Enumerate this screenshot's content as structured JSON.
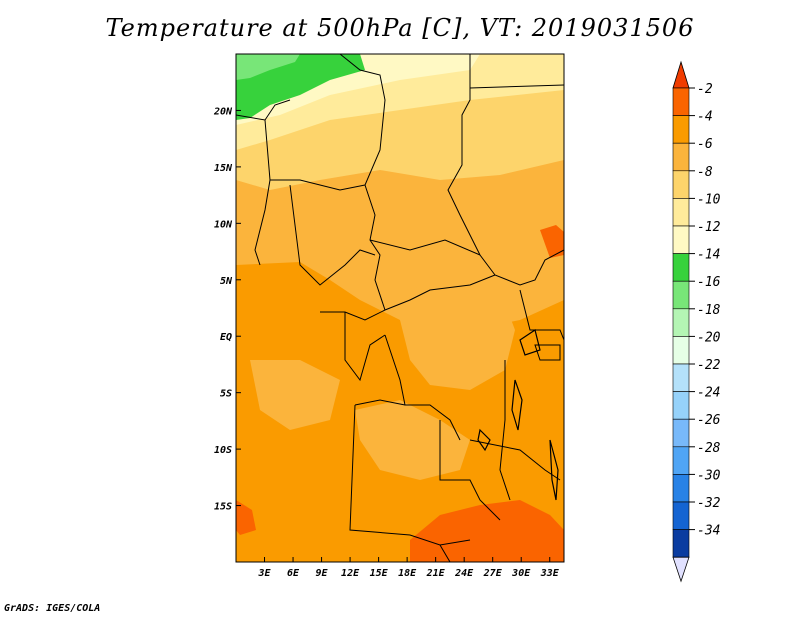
{
  "title": "Temperature at 500hPa [C], VT: 2019031506",
  "footer": "GrADS: IGES/COLA",
  "map": {
    "lat_labels": [
      {
        "lat": 20,
        "label": "20N"
      },
      {
        "lat": 15,
        "label": "15N"
      },
      {
        "lat": 10,
        "label": "10N"
      },
      {
        "lat": 5,
        "label": "5N"
      },
      {
        "lat": 0,
        "label": "EQ"
      },
      {
        "lat": -5,
        "label": "5S"
      },
      {
        "lat": -10,
        "label": "10S"
      },
      {
        "lat": -15,
        "label": "15S"
      }
    ],
    "lon_labels": [
      {
        "lon": 3,
        "label": "3E"
      },
      {
        "lon": 6,
        "label": "6E"
      },
      {
        "lon": 9,
        "label": "9E"
      },
      {
        "lon": 12,
        "label": "12E"
      },
      {
        "lon": 15,
        "label": "15E"
      },
      {
        "lon": 18,
        "label": "18E"
      },
      {
        "lon": 21,
        "label": "21E"
      },
      {
        "lon": 24,
        "label": "24E"
      },
      {
        "lon": 27,
        "label": "27E"
      },
      {
        "lon": 30,
        "label": "30E"
      },
      {
        "lon": 33,
        "label": "33E"
      }
    ],
    "lon_range": [
      0,
      34.5
    ],
    "lat_range": [
      -20,
      25
    ]
  },
  "colorbar": {
    "levels": [
      {
        "label": "-2",
        "color": "#fa6400"
      },
      {
        "label": "-4",
        "color": "#fa9b00"
      },
      {
        "label": "-6",
        "color": "#fbb43c"
      },
      {
        "label": "-8",
        "color": "#fdd46b"
      },
      {
        "label": "-10",
        "color": "#ffeb9b"
      },
      {
        "label": "-12",
        "color": "#fff9c4"
      },
      {
        "label": "-14",
        "color": "#37d23c"
      },
      {
        "label": "-16",
        "color": "#78e678"
      },
      {
        "label": "-18",
        "color": "#b4f5b4"
      },
      {
        "label": "-20",
        "color": "#e6ffe6"
      },
      {
        "label": "-22",
        "color": "#b4e1fa"
      },
      {
        "label": "-24",
        "color": "#96d2fa"
      },
      {
        "label": "-26",
        "color": "#78b9fa"
      },
      {
        "label": "-28",
        "color": "#50a5f5"
      },
      {
        "label": "-30",
        "color": "#2882e6"
      },
      {
        "label": "-32",
        "color": "#1464d2"
      },
      {
        "label": "-34",
        "color": "#0a3ca0"
      }
    ],
    "top_color": "#f03c00",
    "bottom_color": "#e1e1ff"
  }
}
